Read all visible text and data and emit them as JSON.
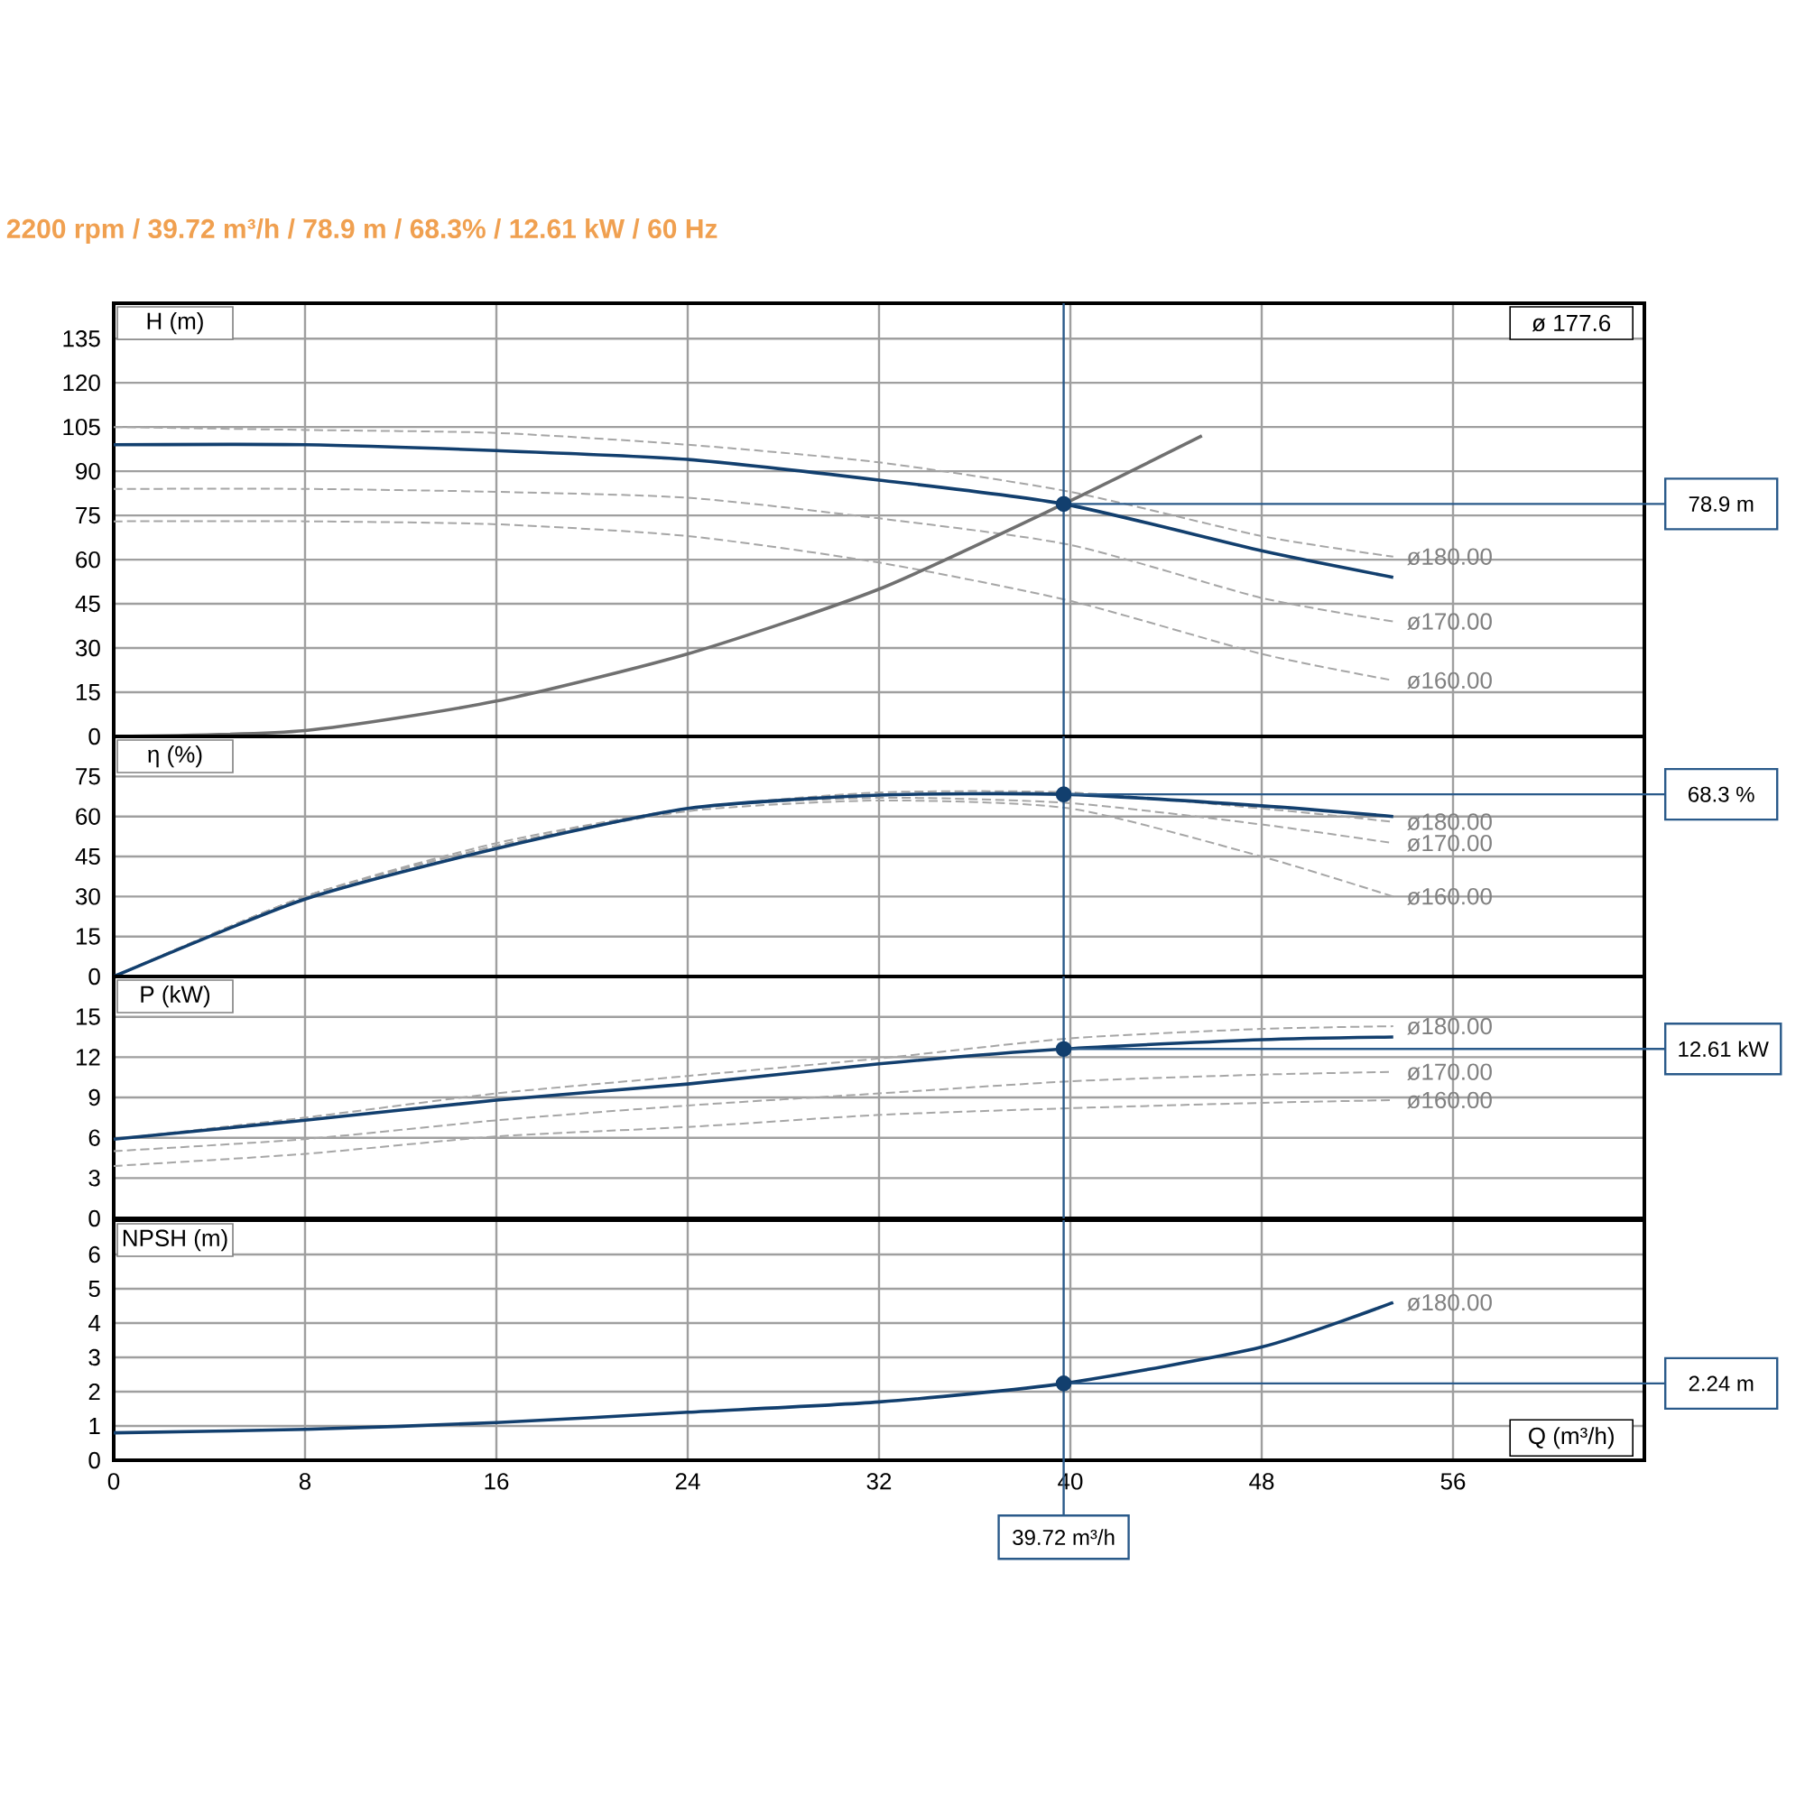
{
  "chart_data": [
    {
      "type": "line",
      "title": "2200 rpm / 39.72 m³/h / 78.9 m / 68.3% / 12.61 kW / 60 Hz",
      "ylabel": "H (m)",
      "annotations": [
        "ø 177.6"
      ],
      "xlim": [
        0,
        64
      ],
      "ylim": [
        0,
        147
      ],
      "xticks": [
        0,
        8,
        16,
        24,
        32,
        40,
        48,
        56
      ],
      "yticks": [
        0,
        15,
        30,
        45,
        60,
        75,
        90,
        105,
        120,
        135
      ],
      "grid": true,
      "tick_labels": "y",
      "ref_lines": [
        {
          "axis": "x",
          "value": 39.72
        },
        {
          "axis": "y",
          "value": 78.9,
          "label": "78.9 m"
        }
      ],
      "series": [
        {
          "color": "#a6a6a6",
          "line_style": "dashed",
          "name": "ø180.00",
          "x": [
            0,
            8,
            16,
            24,
            32,
            40,
            48,
            53.5
          ],
          "values": [
            105,
            104,
            103,
            99,
            93,
            83,
            68,
            61
          ]
        },
        {
          "color": "#a6a6a6",
          "line_style": "dashed",
          "name": "ø170.00",
          "x": [
            0,
            8,
            16,
            24,
            32,
            40,
            48,
            53.5
          ],
          "values": [
            84,
            84,
            83,
            81,
            74,
            65,
            47,
            39
          ]
        },
        {
          "color": "#a6a6a6",
          "line_style": "dashed",
          "name": "ø160.00",
          "x": [
            0,
            8,
            16,
            24,
            32,
            40,
            48,
            53.5
          ],
          "values": [
            73,
            73,
            72,
            68,
            59,
            46,
            28,
            19
          ]
        },
        {
          "color": "#707070",
          "line_style": "solid",
          "x": [
            0,
            8,
            16,
            24,
            32,
            39.72,
            45.5
          ],
          "values": [
            0,
            2,
            12,
            28,
            50,
            78.9,
            102
          ]
        },
        {
          "color": "#123f6e",
          "line_style": "solid",
          "x": [
            0,
            8,
            16,
            24,
            32,
            39.72,
            48,
            53.5
          ],
          "values": [
            99,
            99,
            97,
            94,
            87,
            78.9,
            63,
            54
          ]
        },
        {
          "type": "scatter",
          "marker": "circle",
          "color": "#123f6e",
          "x": [
            39.72
          ],
          "values": [
            78.9
          ]
        }
      ]
    },
    {
      "type": "line",
      "ylabel": "η (%)",
      "xlim": [
        0,
        64
      ],
      "ylim": [
        0,
        90
      ],
      "xticks": [
        0,
        8,
        16,
        24,
        32,
        40,
        48,
        56
      ],
      "yticks": [
        0,
        15,
        30,
        45,
        60,
        75
      ],
      "grid": true,
      "tick_labels": "y",
      "ref_lines": [
        {
          "axis": "x",
          "value": 39.72
        },
        {
          "axis": "y",
          "value": 68.3,
          "label": "68.3 %"
        }
      ],
      "series": [
        {
          "color": "#a6a6a6",
          "line_style": "dashed",
          "name": "ø180.00",
          "x": [
            0,
            8,
            16,
            24,
            32,
            40,
            48,
            53.5
          ],
          "values": [
            0,
            30,
            50,
            63,
            69,
            69,
            63,
            58
          ]
        },
        {
          "color": "#a6a6a6",
          "line_style": "dashed",
          "name": "ø170.00",
          "x": [
            0,
            8,
            16,
            24,
            32,
            40,
            48,
            53.5
          ],
          "values": [
            0,
            30,
            49,
            63,
            67,
            65,
            57,
            50
          ]
        },
        {
          "color": "#a6a6a6",
          "line_style": "dashed",
          "name": "ø160.00",
          "x": [
            0,
            8,
            16,
            24,
            32,
            40,
            48,
            53.5
          ],
          "values": [
            0,
            30,
            49,
            62,
            66,
            63,
            45,
            30
          ]
        },
        {
          "color": "#123f6e",
          "line_style": "solid",
          "x": [
            0,
            8,
            16,
            24,
            32,
            39.72,
            48,
            53.5
          ],
          "values": [
            0,
            29,
            48,
            63,
            68,
            68.3,
            64,
            60
          ]
        },
        {
          "type": "scatter",
          "marker": "circle",
          "color": "#123f6e",
          "x": [
            39.72
          ],
          "values": [
            68.3
          ]
        }
      ]
    },
    {
      "type": "line",
      "ylabel": "P (kW)",
      "xlim": [
        0,
        64
      ],
      "ylim": [
        0,
        18
      ],
      "xticks": [
        0,
        8,
        16,
        24,
        32,
        40,
        48,
        56
      ],
      "yticks": [
        0,
        3,
        6,
        9,
        12,
        15
      ],
      "grid": true,
      "tick_labels": "y",
      "ref_lines": [
        {
          "axis": "x",
          "value": 39.72
        },
        {
          "axis": "y",
          "value": 12.61,
          "label": "12.61 kW"
        }
      ],
      "series": [
        {
          "color": "#a6a6a6",
          "line_style": "dashed",
          "name": "ø180.00",
          "x": [
            0,
            8,
            16,
            24,
            32,
            40,
            48,
            53.5
          ],
          "values": [
            5.9,
            7.5,
            9.3,
            10.6,
            11.9,
            13.4,
            14.1,
            14.3
          ]
        },
        {
          "color": "#a6a6a6",
          "line_style": "dashed",
          "name": "ø170.00",
          "x": [
            0,
            8,
            16,
            24,
            32,
            40,
            48,
            53.5
          ],
          "values": [
            5.0,
            5.9,
            7.3,
            8.4,
            9.3,
            10.2,
            10.7,
            10.9
          ]
        },
        {
          "color": "#a6a6a6",
          "line_style": "dashed",
          "name": "ø160.00",
          "x": [
            0,
            8,
            16,
            24,
            32,
            40,
            48,
            53.5
          ],
          "values": [
            3.9,
            4.8,
            6.1,
            6.8,
            7.7,
            8.2,
            8.6,
            8.8
          ]
        },
        {
          "color": "#123f6e",
          "line_style": "solid",
          "x": [
            0,
            8,
            16,
            24,
            32,
            39.72,
            48,
            53.5
          ],
          "values": [
            5.9,
            7.3,
            8.8,
            10.0,
            11.5,
            12.61,
            13.3,
            13.5
          ]
        },
        {
          "type": "scatter",
          "marker": "circle",
          "color": "#123f6e",
          "x": [
            39.72
          ],
          "values": [
            12.61
          ]
        }
      ]
    },
    {
      "type": "line",
      "ylabel": "NPSH (m)",
      "xlabel": "Q (m³/h)",
      "xlim": [
        0,
        64
      ],
      "ylim": [
        0,
        7
      ],
      "xticks": [
        0,
        8,
        16,
        24,
        32,
        40,
        48,
        56
      ],
      "yticks": [
        0,
        1,
        2,
        3,
        4,
        5,
        6
      ],
      "grid": true,
      "ref_lines": [
        {
          "axis": "x",
          "value": 39.72,
          "label": "39.72 m³/h"
        },
        {
          "axis": "y",
          "value": 2.24,
          "label": "2.24 m"
        }
      ],
      "series": [
        {
          "color": "#123f6e",
          "line_style": "solid",
          "name": "ø180.00",
          "x": [
            0,
            8,
            16,
            24,
            32,
            39.72,
            48,
            53.5
          ],
          "values": [
            0.8,
            0.9,
            1.1,
            1.4,
            1.7,
            2.24,
            3.3,
            4.6
          ]
        },
        {
          "type": "scatter",
          "marker": "circle",
          "color": "#123f6e",
          "x": [
            39.72
          ],
          "values": [
            2.24
          ]
        }
      ]
    }
  ]
}
